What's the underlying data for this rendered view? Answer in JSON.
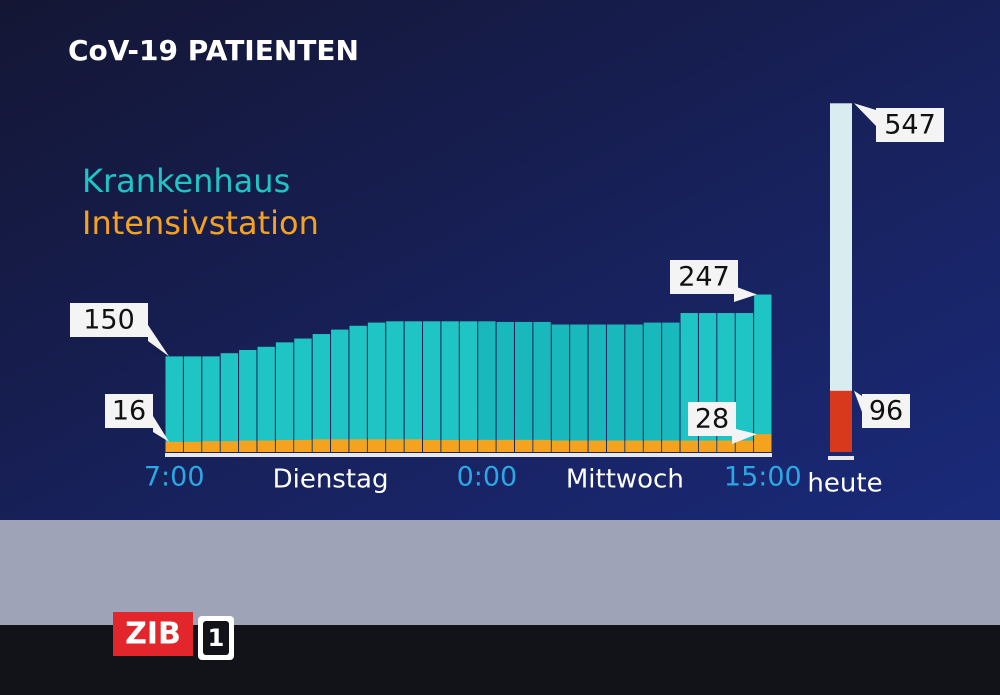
{
  "chart_data": {
    "type": "bar",
    "title": "CoV-19 PATIENTEN",
    "categories": [
      "7:00",
      null,
      null,
      null,
      null,
      null,
      null,
      null,
      null,
      null,
      null,
      null,
      null,
      null,
      null,
      null,
      null,
      "0:00",
      null,
      null,
      null,
      null,
      null,
      null,
      null,
      null,
      null,
      null,
      null,
      null,
      null,
      null,
      "15:00"
    ],
    "day_labels": [
      "Dienstag",
      "Mittwoch"
    ],
    "series": [
      {
        "name": "Krankenhaus",
        "color": "#1fc4c4",
        "values": [
          150,
          150,
          150,
          155,
          160,
          165,
          172,
          178,
          185,
          192,
          198,
          203,
          205,
          205,
          205,
          205,
          205,
          205,
          204,
          204,
          204,
          200,
          200,
          200,
          200,
          200,
          203,
          203,
          218,
          218,
          218,
          218,
          247
        ]
      },
      {
        "name": "Intensivstation",
        "color": "#f5a21f",
        "values": [
          16,
          16,
          17,
          17,
          18,
          18,
          19,
          19,
          20,
          20,
          20,
          20,
          20,
          20,
          19,
          19,
          19,
          19,
          19,
          19,
          19,
          18,
          18,
          18,
          18,
          18,
          18,
          18,
          18,
          18,
          18,
          18,
          28
        ]
      }
    ],
    "today": {
      "label": "heute",
      "values": [
        547,
        96
      ],
      "colors": [
        "#d9ecef",
        "#d8391c"
      ]
    },
    "ylim": [
      0,
      560
    ]
  },
  "logo": {
    "text": "ZIB",
    "number": "1"
  }
}
